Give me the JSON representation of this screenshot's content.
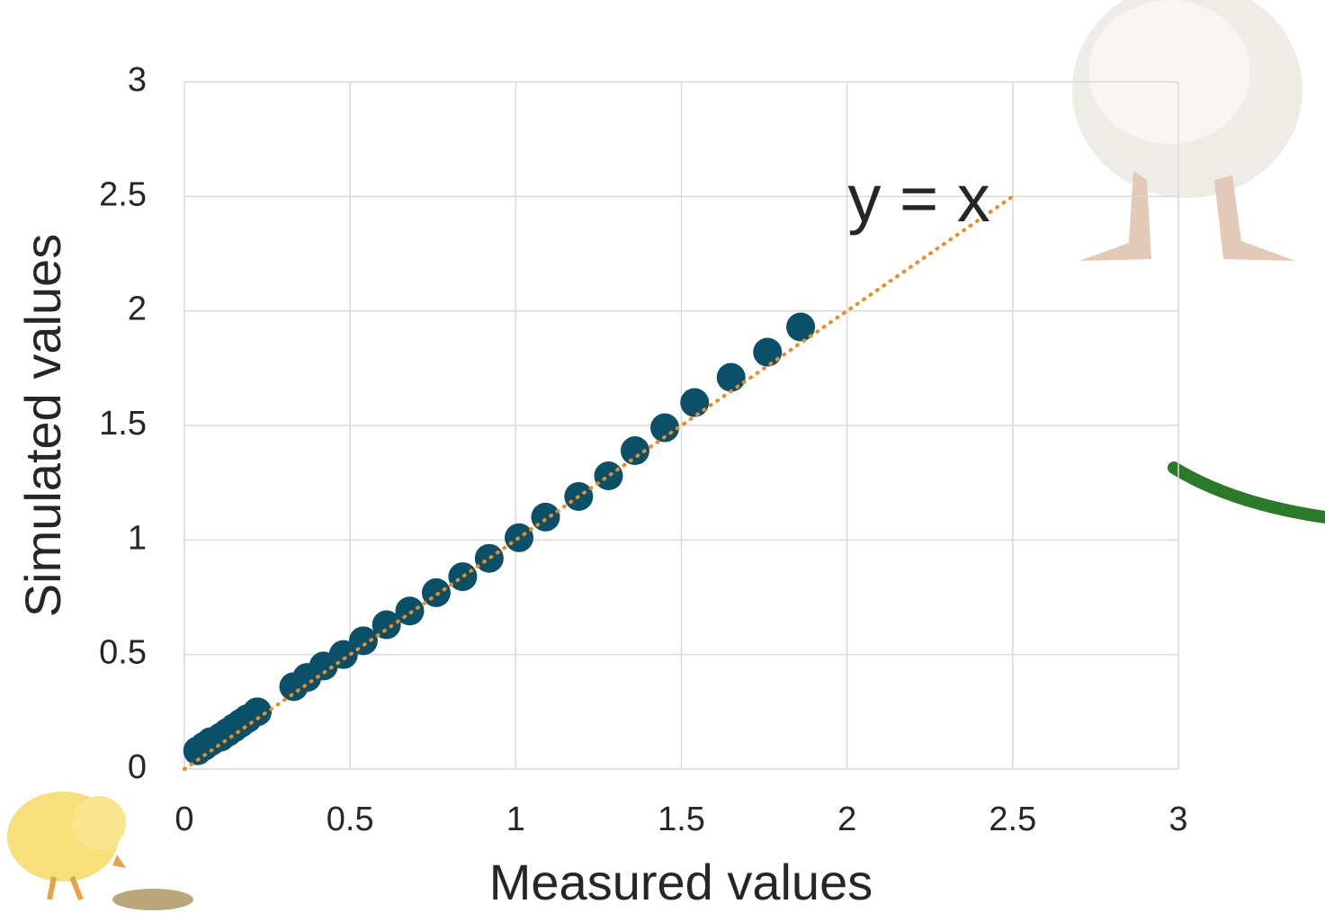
{
  "chart_data": {
    "type": "scatter",
    "x_label": "Measured values",
    "y_label": "Simulated values",
    "xlim": [
      0,
      3
    ],
    "ylim": [
      0,
      3
    ],
    "xticks": [
      0,
      0.5,
      1,
      1.5,
      2,
      2.5,
      3
    ],
    "yticks": [
      0,
      0.5,
      1,
      1.5,
      2,
      2.5,
      3
    ],
    "grid": true,
    "series": [
      {
        "color": "#0b5069",
        "x": [
          0.04,
          0.06,
          0.08,
          0.11,
          0.13,
          0.15,
          0.17,
          0.19,
          0.22,
          0.33,
          0.37,
          0.42,
          0.48,
          0.54,
          0.61,
          0.68,
          0.76,
          0.84,
          0.92,
          1.01,
          1.09,
          1.19,
          1.28,
          1.36,
          1.45,
          1.54,
          1.65,
          1.76,
          1.86
        ],
        "values": [
          0.08,
          0.1,
          0.12,
          0.14,
          0.16,
          0.18,
          0.2,
          0.22,
          0.25,
          0.36,
          0.4,
          0.45,
          0.5,
          0.56,
          0.63,
          0.69,
          0.77,
          0.84,
          0.92,
          1.01,
          1.1,
          1.19,
          1.28,
          1.39,
          1.49,
          1.6,
          1.71,
          1.82,
          1.93
        ]
      }
    ],
    "reference_line": {
      "label": "y = x",
      "color": "#f08a1c",
      "x": [
        0,
        2.5
      ],
      "values": [
        0,
        2.5
      ]
    }
  }
}
